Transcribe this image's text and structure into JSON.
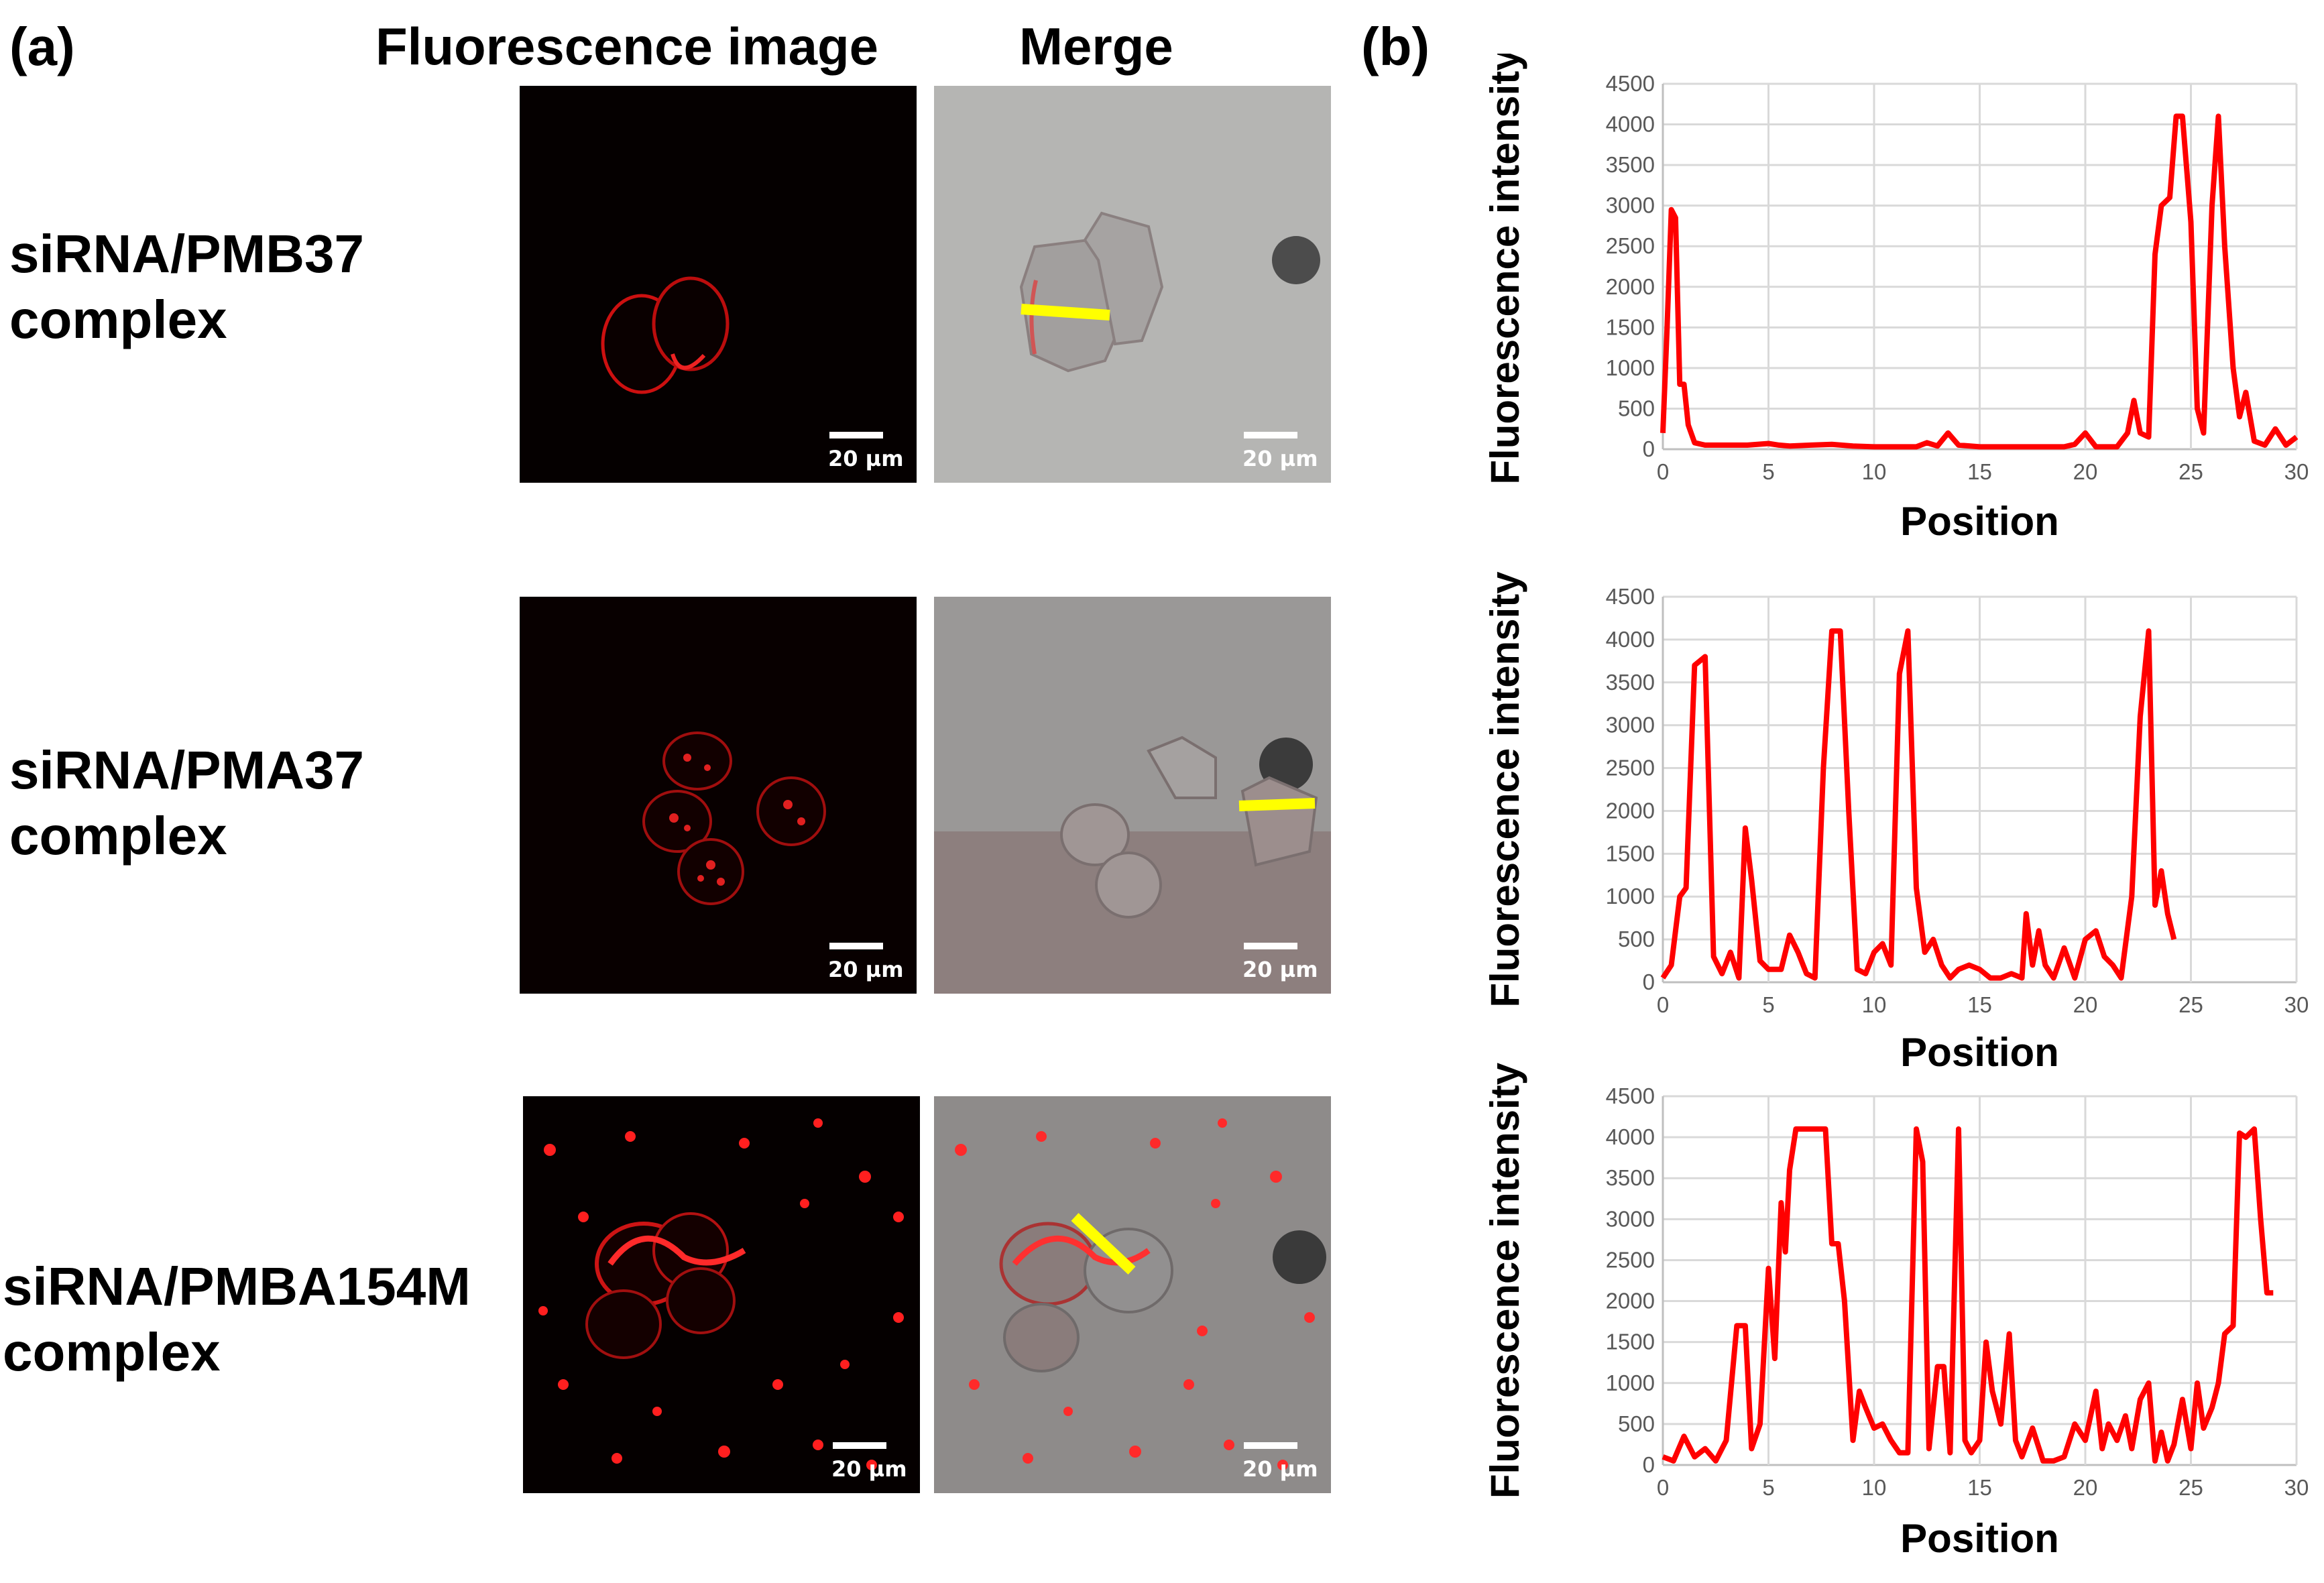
{
  "figure": {
    "panel_a_label": "(a)",
    "panel_b_label": "(b)",
    "col_fluorescence": "Fluorescence image",
    "col_merge": "Merge",
    "scale_bar_text": "20 µm",
    "rows": [
      {
        "label": "siRNA/PMB37\ncomplex"
      },
      {
        "label": "siRNA/PMA37\ncomplex"
      },
      {
        "label": "siRNA/PMBA154M\ncomplex"
      }
    ],
    "colors": {
      "series": "#ff0000",
      "line_scan": "#ffff00"
    }
  },
  "chart_data": [
    {
      "type": "line",
      "xlabel": "Position",
      "ylabel": "Fluorescence intensity",
      "xlim": [
        0,
        30
      ],
      "ylim": [
        0,
        4500
      ],
      "xticks": [
        "0",
        "5",
        "10",
        "15",
        "20",
        "25",
        "30"
      ],
      "yticks": [
        "0",
        "500",
        "1000",
        "1500",
        "2000",
        "2500",
        "3000",
        "3500",
        "4000",
        "4500"
      ],
      "grid": true,
      "x": [
        0,
        0.2,
        0.4,
        0.6,
        0.8,
        1.0,
        1.2,
        1.5,
        2,
        3,
        4,
        5,
        5.5,
        6,
        7,
        8,
        9,
        10,
        11,
        12,
        12.5,
        13,
        13.5,
        14,
        15,
        16,
        17,
        18,
        19,
        19.5,
        20,
        20.5,
        21,
        21.5,
        22,
        22.3,
        22.6,
        23,
        23.3,
        23.6,
        24,
        24.3,
        24.6,
        25,
        25.3,
        25.6,
        26,
        26.3,
        26.6,
        27,
        27.3,
        27.6,
        28,
        28.5,
        29,
        29.5,
        30
      ],
      "y": [
        200,
        1500,
        2950,
        2850,
        800,
        800,
        300,
        80,
        50,
        50,
        50,
        70,
        50,
        40,
        50,
        60,
        40,
        30,
        30,
        30,
        80,
        40,
        200,
        50,
        30,
        30,
        30,
        30,
        30,
        60,
        200,
        30,
        30,
        30,
        200,
        600,
        200,
        150,
        2400,
        3000,
        3100,
        4100,
        4100,
        2800,
        500,
        200,
        3000,
        4100,
        2500,
        1000,
        400,
        700,
        100,
        50,
        250,
        50,
        150
      ]
    },
    {
      "type": "line",
      "xlabel": "Position",
      "ylabel": "Fluorescence intensity",
      "xlim": [
        0,
        30
      ],
      "ylim": [
        0,
        4500
      ],
      "xticks": [
        "0",
        "5",
        "10",
        "15",
        "20",
        "25",
        "30"
      ],
      "yticks": [
        "0",
        "500",
        "1000",
        "1500",
        "2000",
        "2500",
        "3000",
        "3500",
        "4000",
        "4500"
      ],
      "grid": true,
      "x": [
        0,
        0.4,
        0.8,
        1.1,
        1.5,
        2,
        2.4,
        2.8,
        3.2,
        3.6,
        3.9,
        4.2,
        4.6,
        5,
        5.6,
        6,
        6.4,
        6.8,
        7.2,
        7.6,
        8,
        8.4,
        8.8,
        9.2,
        9.6,
        10,
        10.4,
        10.8,
        11.2,
        11.6,
        12,
        12.4,
        12.8,
        13.2,
        13.6,
        14,
        14.5,
        15,
        15.5,
        16,
        16.5,
        17,
        17.2,
        17.5,
        17.8,
        18.1,
        18.5,
        19,
        19.5,
        20,
        20.5,
        20.9,
        21.3,
        21.7,
        22.2,
        22.6,
        23,
        23.3,
        23.6,
        23.9,
        24.2
      ],
      "y": [
        50,
        200,
        1000,
        1100,
        3700,
        3800,
        300,
        100,
        350,
        50,
        1800,
        1200,
        250,
        150,
        150,
        550,
        350,
        100,
        50,
        2500,
        4100,
        4100,
        2000,
        150,
        100,
        350,
        450,
        200,
        3600,
        4100,
        1100,
        350,
        500,
        200,
        50,
        150,
        200,
        150,
        50,
        50,
        100,
        50,
        800,
        200,
        600,
        200,
        50,
        400,
        50,
        500,
        600,
        300,
        200,
        50,
        1000,
        3100,
        4100,
        900,
        1300,
        800,
        500
      ]
    },
    {
      "type": "line",
      "xlabel": "Position",
      "ylabel": "Fluorescence intensity",
      "xlim": [
        0,
        30
      ],
      "ylim": [
        0,
        4500
      ],
      "xticks": [
        "0",
        "5",
        "10",
        "15",
        "20",
        "25",
        "30"
      ],
      "yticks": [
        "0",
        "500",
        "1000",
        "1500",
        "2000",
        "2500",
        "3000",
        "3500",
        "4000",
        "4500"
      ],
      "grid": true,
      "x": [
        0,
        0.5,
        1,
        1.5,
        2,
        2.5,
        3,
        3.5,
        3.9,
        4.2,
        4.6,
        5,
        5.3,
        5.6,
        5.8,
        6,
        6.3,
        6.8,
        7.3,
        7.7,
        8,
        8.3,
        8.6,
        9,
        9.3,
        9.6,
        10,
        10.4,
        10.8,
        11.2,
        11.6,
        12,
        12.3,
        12.6,
        13,
        13.3,
        13.6,
        14,
        14.3,
        14.6,
        15,
        15.3,
        15.6,
        16,
        16.4,
        16.7,
        17,
        17.5,
        18,
        18.5,
        19,
        19.5,
        20,
        20.5,
        20.8,
        21.1,
        21.5,
        21.9,
        22.2,
        22.6,
        23,
        23.3,
        23.6,
        23.9,
        24.2,
        24.6,
        25,
        25.3,
        25.6,
        26,
        26.3,
        26.6,
        27,
        27.3,
        27.6,
        28,
        28.3,
        28.6,
        28.9
      ],
      "y": [
        100,
        50,
        350,
        100,
        200,
        50,
        300,
        1700,
        1700,
        200,
        500,
        2400,
        1300,
        3200,
        2600,
        3600,
        4100,
        4100,
        4100,
        4100,
        2700,
        2700,
        2000,
        300,
        900,
        700,
        450,
        500,
        300,
        150,
        150,
        4100,
        3700,
        200,
        1200,
        1200,
        150,
        4100,
        300,
        150,
        300,
        1500,
        900,
        500,
        1600,
        300,
        100,
        450,
        50,
        50,
        100,
        500,
        300,
        900,
        200,
        500,
        300,
        600,
        200,
        800,
        1000,
        50,
        400,
        50,
        250,
        800,
        200,
        1000,
        450,
        700,
        1000,
        1600,
        1700,
        4050,
        4000,
        4100,
        3000,
        2100,
        2100
      ]
    }
  ]
}
